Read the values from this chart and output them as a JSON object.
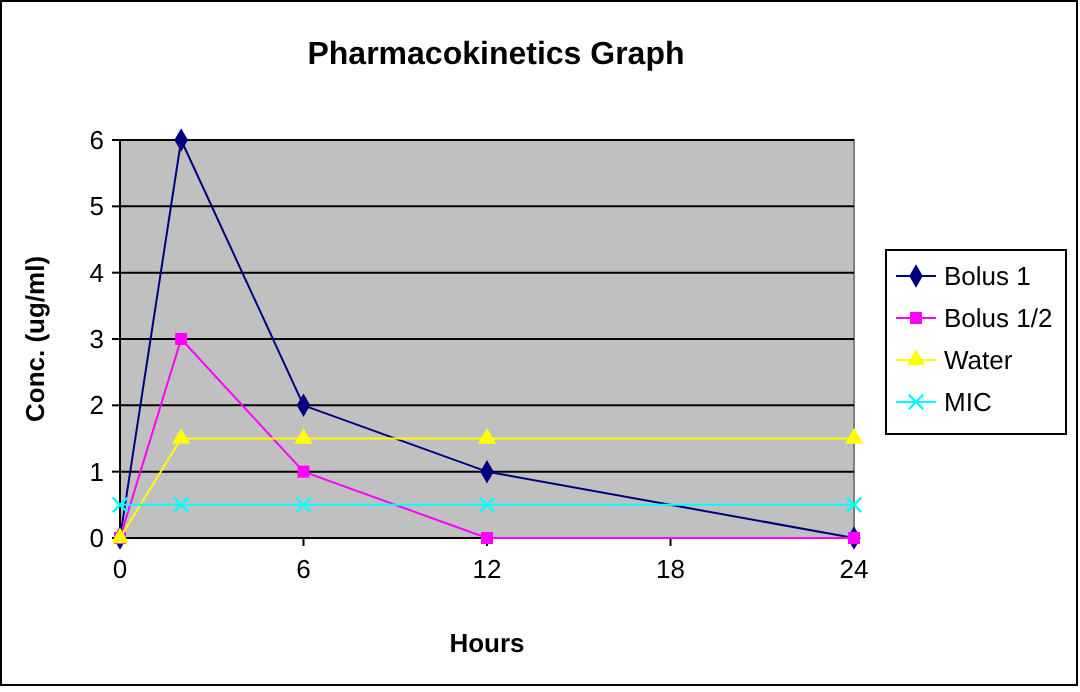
{
  "chart_data": {
    "type": "line",
    "title": "Pharmacokinetics Graph",
    "xlabel": "Hours",
    "ylabel": "Conc. (ug/ml)",
    "x": [
      0,
      2,
      6,
      12,
      24
    ],
    "xlim": [
      0,
      24
    ],
    "xticks": [
      0,
      6,
      12,
      18,
      24
    ],
    "ylim": [
      0,
      6
    ],
    "yticks": [
      0,
      1,
      2,
      3,
      4,
      5,
      6
    ],
    "grid": "y",
    "legend": "right",
    "series": [
      {
        "name": "Bolus 1",
        "color": "#000080",
        "marker": "diamond",
        "values": [
          0,
          6,
          2,
          1,
          0
        ]
      },
      {
        "name": "Bolus 1/2",
        "color": "#ff00ff",
        "marker": "square",
        "values": [
          0,
          3,
          1,
          0,
          0
        ]
      },
      {
        "name": "Water",
        "color": "#ffff00",
        "marker": "triangle",
        "values": [
          0,
          1.5,
          1.5,
          1.5,
          1.5
        ]
      },
      {
        "name": "MIC",
        "color": "#00ffff",
        "marker": "cross",
        "values": [
          0.5,
          0.5,
          0.5,
          0.5,
          0.5
        ]
      }
    ]
  }
}
